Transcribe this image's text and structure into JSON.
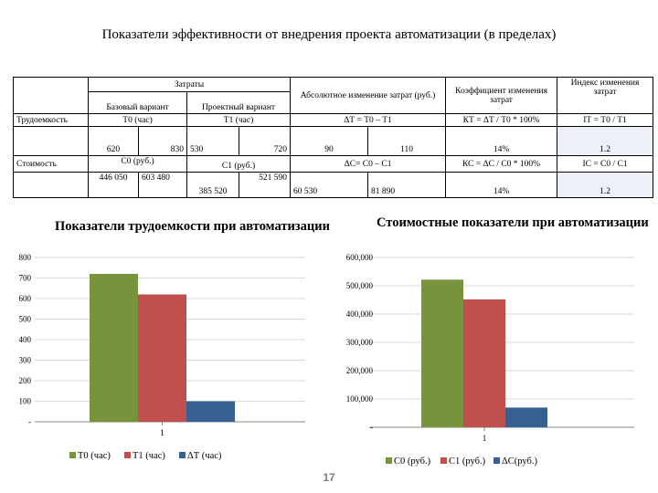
{
  "slide": {
    "title": "Показатели эффективности от внедрения проекта автоматизации (в пределах)",
    "page_number": "17"
  },
  "table": {
    "h_costs": "Затраты",
    "h_abs": "Абсолютное изменение затрат (руб.)",
    "h_coef": "Коэффициент изменения затрат",
    "h_index": "Индекс изменения затрат",
    "h_base": "Базовый вариант",
    "h_proj": "Проектный вариант",
    "r1_label": "Трудоемкость",
    "r1_t0": "Т0 (час)",
    "r1_t1": "Т1 (час)",
    "r1_dt": "ΔТ = Т0 – Т1",
    "r1_kt": "КТ = ΔТ / Т0 * 100%",
    "r1_it": "IТ = Т0 / Т1",
    "r2_b1": "620",
    "r2_b2": "830",
    "r2_p1": "530",
    "r2_p2": "720",
    "r2_a1": "90",
    "r2_a2": "110",
    "r2_k": "14%",
    "r2_i": "1.2",
    "r3_label": "Стоимость",
    "r3_c0": "С0 (руб.)",
    "r3_c1": "С1 (руб.)",
    "r3_dc": "ΔС= С0 – С1",
    "r3_kc": "КС = ΔС / С0 * 100%",
    "r3_ic": "IС = С0 / С1",
    "r4_b1": "446 050",
    "r4_b2": "603 480",
    "r4_p1": "385 520",
    "r4_p2": "521 590",
    "r4_a1": "60 530",
    "r4_a2": "81 890",
    "r4_k": "14%",
    "r4_i": "1.2"
  },
  "chart_data": [
    {
      "type": "bar",
      "title": "Показатели трудоемкости при автоматизации",
      "categories": [
        "1"
      ],
      "series": [
        {
          "name": "Т0 (час)",
          "values": [
            720
          ],
          "color": "#77933c"
        },
        {
          "name": "Т1 (час)",
          "values": [
            620
          ],
          "color": "#c0504d"
        },
        {
          "name": "ΔТ (час)",
          "values": [
            100
          ],
          "color": "#376092"
        }
      ],
      "ylim": [
        0,
        800
      ],
      "yticks": [
        "-",
        "100",
        "200",
        "300",
        "400",
        "500",
        "600",
        "700",
        "800"
      ],
      "grid": true,
      "legend": "bottom"
    },
    {
      "type": "bar",
      "title": "Стоимостные показатели при автоматизации",
      "categories": [
        "1"
      ],
      "series": [
        {
          "name": "С0 (руб.)",
          "values": [
            521590
          ],
          "color": "#77933c"
        },
        {
          "name": "С1 (руб.)",
          "values": [
            452000
          ],
          "color": "#c0504d"
        },
        {
          "name": "ΔС(руб.)",
          "values": [
            69590
          ],
          "color": "#376092"
        }
      ],
      "ylim": [
        0,
        600000
      ],
      "yticks": [
        "-",
        "100,000",
        "200,000",
        "300,000",
        "400,000",
        "500,000",
        "600,000"
      ],
      "grid": true,
      "legend": "bottom"
    }
  ]
}
